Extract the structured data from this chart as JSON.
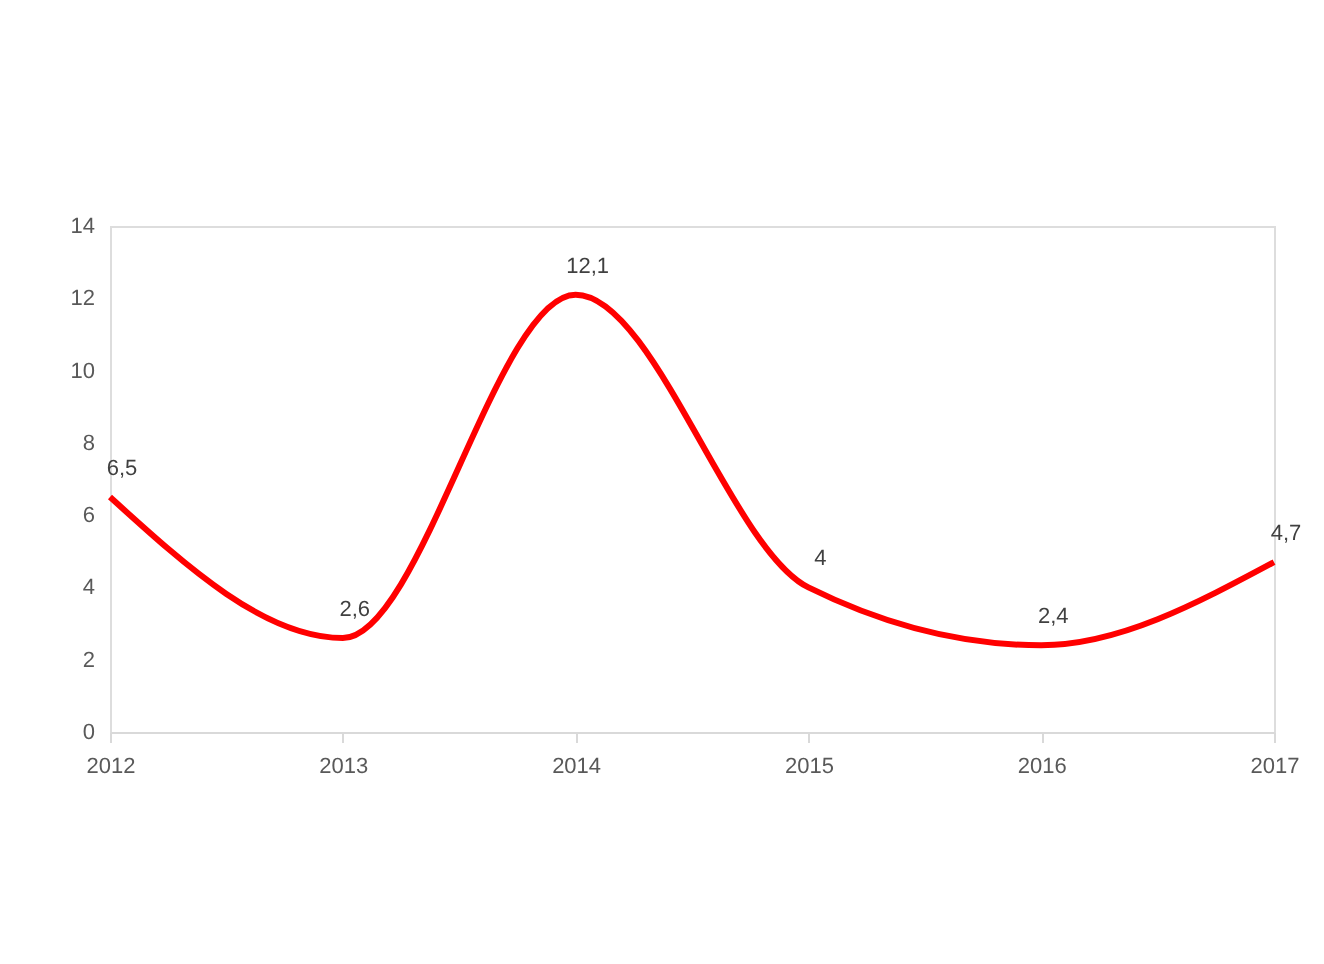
{
  "chart_data": {
    "type": "line",
    "x": [
      2012,
      2013,
      2014,
      2015,
      2016,
      2017
    ],
    "series": [
      {
        "color": "#ff0000",
        "values": [
          6.5,
          2.6,
          12.1,
          4,
          2.4,
          4.7
        ],
        "value_labels": [
          "6,5",
          "2,6",
          "12,1",
          "4",
          "2,4",
          "4,7"
        ]
      }
    ],
    "xlim": [
      2012,
      2017
    ],
    "xticks": [
      2012,
      2013,
      2014,
      2015,
      2016,
      2017
    ],
    "ylim": [
      0,
      14
    ],
    "yticks": [
      0,
      2,
      4,
      6,
      8,
      10,
      12,
      14
    ],
    "grid": false,
    "marker": "none",
    "line_style": "solid"
  }
}
